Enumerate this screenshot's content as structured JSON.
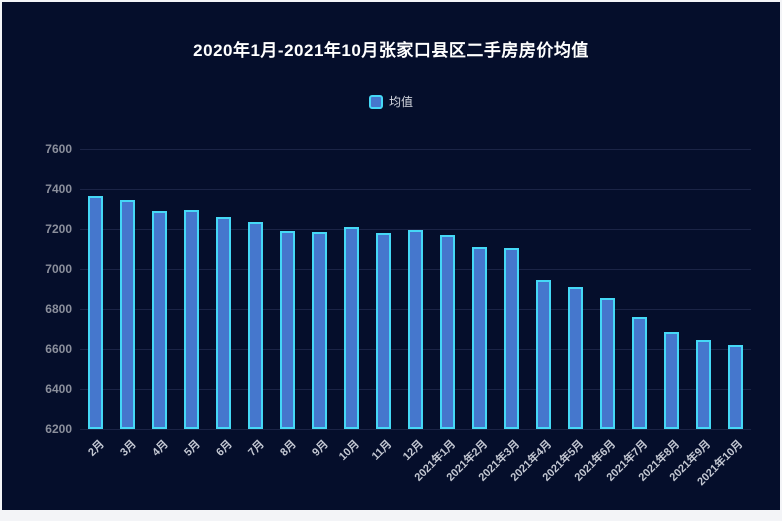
{
  "window": {
    "frame_color": "#f3f4f7",
    "surface_color": "#050e2b"
  },
  "chart_data": {
    "type": "bar",
    "title": "2020年1月-2021年10月张家口县区二手房房价均值",
    "legend_entries": [
      "均值"
    ],
    "legend_position": "top-center",
    "categories": [
      "2月",
      "3月",
      "4月",
      "5月",
      "6月",
      "7月",
      "8月",
      "9月",
      "10月",
      "11月",
      "12月",
      "2021年1月",
      "2021年2月",
      "2021年3月",
      "2021年4月",
      "2021年5月",
      "2021年6月",
      "2021年7月",
      "2021年8月",
      "2021年9月",
      "2021年10月"
    ],
    "series": [
      {
        "name": "均值",
        "values": [
          7365,
          7345,
          7290,
          7295,
          7260,
          7235,
          7190,
          7185,
          7210,
          7180,
          7195,
          7170,
          7110,
          7105,
          6945,
          6910,
          6855,
          6760,
          6685,
          6645,
          6620
        ]
      }
    ],
    "xlabel": "",
    "ylabel": "",
    "ylim": [
      6200,
      7600
    ],
    "ytick_interval": 200,
    "ytick_labels": [
      "7600",
      "7400",
      "7200",
      "7000",
      "6800",
      "6600",
      "6400",
      "6200"
    ],
    "grid": "horizontal-only",
    "x_label_rotation_deg": 45,
    "colors": {
      "bar_fill": "#4577cd",
      "bar_border": "#45d8f6",
      "gridline": "#1b2446",
      "title_text": "#ffffff",
      "y_label_text": "#8b8f9c",
      "x_label_text": "#c3c7d2",
      "legend_text": "#d9dce4"
    }
  }
}
